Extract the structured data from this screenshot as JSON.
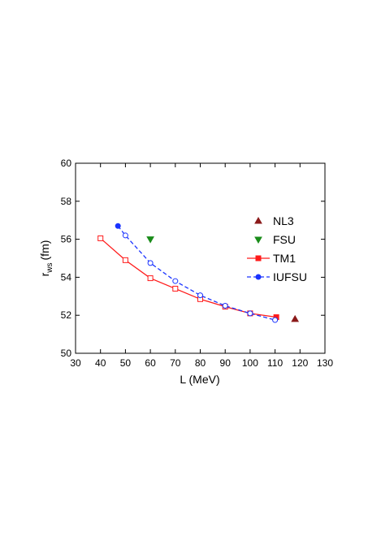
{
  "chart_data": {
    "type": "line",
    "xlabel": "L (MeV)",
    "ylabel": {
      "main": "r",
      "sub": "ws",
      "unit": "(fm)"
    },
    "xlim": [
      30,
      130
    ],
    "xticks": [
      30,
      40,
      50,
      60,
      70,
      80,
      90,
      100,
      110,
      120,
      130
    ],
    "ylim": [
      50,
      60
    ],
    "yticks": [
      50,
      52,
      54,
      56,
      58,
      60
    ],
    "series": [
      {
        "name": "NL3",
        "color": "#8b1a1a",
        "marker": "triangle-up",
        "line": false,
        "x": [
          118
        ],
        "values": [
          51.8
        ]
      },
      {
        "name": "FSU",
        "color": "#1a8c1a",
        "marker": "triangle-down",
        "line": false,
        "x": [
          60
        ],
        "values": [
          56.0
        ]
      },
      {
        "name": "TM1",
        "color": "#ff1a1a",
        "marker": "square",
        "line": "solid",
        "x": [
          40,
          50,
          60,
          70,
          80,
          90,
          100,
          110.5
        ],
        "values": [
          56.05,
          54.9,
          53.95,
          53.4,
          52.85,
          52.45,
          52.1,
          51.9
        ]
      },
      {
        "name": "IUFSU",
        "color": "#1a33ff",
        "marker": "circle",
        "line": "dashed",
        "x": [
          47,
          50,
          60,
          70,
          80,
          90,
          100,
          110
        ],
        "values": [
          56.7,
          56.2,
          54.75,
          53.8,
          53.05,
          52.5,
          52.1,
          51.75
        ]
      }
    ]
  }
}
